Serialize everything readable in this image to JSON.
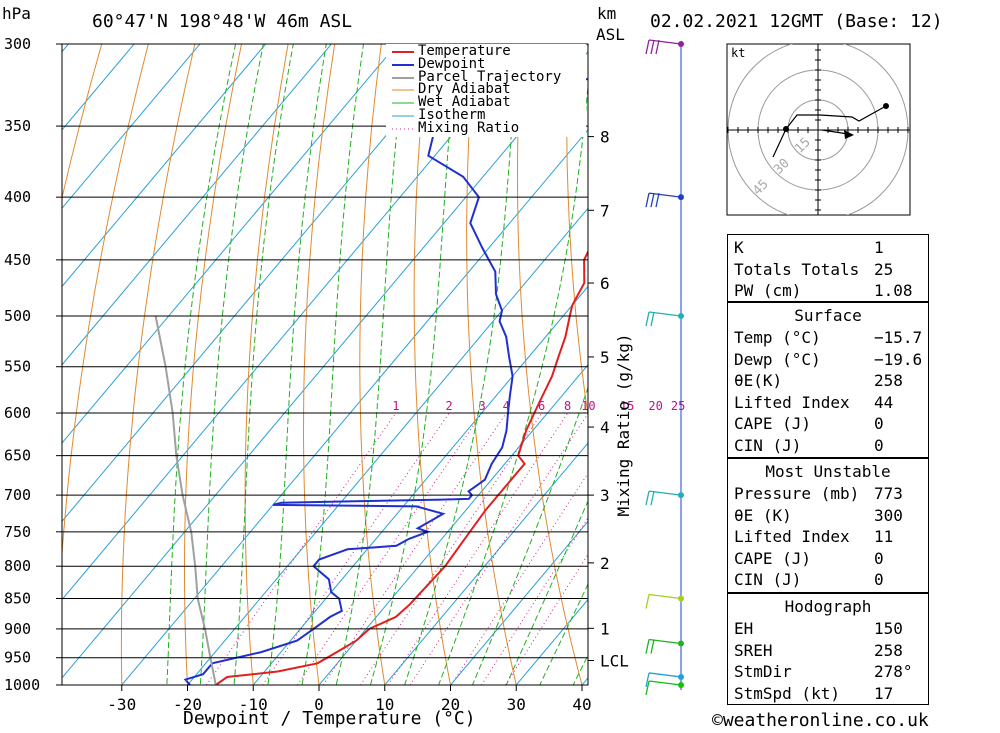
{
  "header": {
    "hpa_label": "hPa",
    "location": "60°47'N  198°48'W  46m  ASL",
    "km_label": "km",
    "asl_label": "ASL",
    "datetime": "02.02.2021  12GMT  (Base: 12)"
  },
  "chart_data": {
    "type": "line",
    "title": "Skew-T log-P diagram",
    "xlabel": "Dewpoint / Temperature (°C)",
    "ylabel": "hPa",
    "xlim": [
      -40,
      40
    ],
    "ylim": [
      1000,
      300
    ],
    "x_ticks": [
      -30,
      -20,
      -10,
      0,
      10,
      20,
      30,
      40
    ],
    "pressure_ticks": [
      300,
      350,
      400,
      450,
      500,
      550,
      600,
      650,
      700,
      750,
      800,
      850,
      900,
      950,
      1000
    ],
    "km_ticks": [
      {
        "label": "8",
        "p": 357
      },
      {
        "label": "7",
        "p": 410
      },
      {
        "label": "6",
        "p": 470
      },
      {
        "label": "5",
        "p": 540
      },
      {
        "label": "4",
        "p": 616
      },
      {
        "label": "3",
        "p": 700
      },
      {
        "label": "2",
        "p": 795
      },
      {
        "label": "1",
        "p": 899
      },
      {
        "label": "LCL",
        "p": 955
      }
    ],
    "mixing_ratio_label": "Mixing Ratio (g/kg)",
    "mixing_ratio_labels": [
      "1",
      "2",
      "3",
      "4",
      "6",
      "8",
      "10",
      "15",
      "20",
      "25"
    ],
    "legend": [
      "Temperature",
      "Dewpoint",
      "Parcel Trajectory",
      "Dry Adiabat",
      "Wet Adiabat",
      "Isotherm",
      "Mixing Ratio"
    ],
    "legend_position": "top-right",
    "series": [
      {
        "name": "Temperature",
        "color": "#e02020",
        "points": [
          [
            1000,
            -15.7
          ],
          [
            985,
            -15
          ],
          [
            975,
            -8
          ],
          [
            960,
            -3
          ],
          [
            940,
            -1.5
          ],
          [
            920,
            0
          ],
          [
            900,
            0.5
          ],
          [
            880,
            3
          ],
          [
            860,
            3.5
          ],
          [
            800,
            4
          ],
          [
            760,
            3.5
          ],
          [
            720,
            3
          ],
          [
            700,
            3
          ],
          [
            680,
            3
          ],
          [
            660,
            3
          ],
          [
            650,
            1
          ],
          [
            620,
            -1
          ],
          [
            600,
            -2
          ],
          [
            580,
            -3
          ],
          [
            560,
            -4
          ],
          [
            540,
            -5.5
          ],
          [
            520,
            -7
          ],
          [
            500,
            -9
          ],
          [
            490,
            -10
          ],
          [
            470,
            -11
          ],
          [
            450,
            -14
          ],
          [
            420,
            -16
          ],
          [
            400,
            -19
          ],
          [
            370,
            -23
          ],
          [
            350,
            -28
          ],
          [
            330,
            -33
          ],
          [
            310,
            -38
          ],
          [
            300,
            -41
          ]
        ]
      },
      {
        "name": "Dewpoint",
        "color": "#2030d0",
        "points": [
          [
            1000,
            -19.6
          ],
          [
            990,
            -21
          ],
          [
            980,
            -19
          ],
          [
            960,
            -19
          ],
          [
            940,
            -13
          ],
          [
            920,
            -9
          ],
          [
            900,
            -8
          ],
          [
            880,
            -7
          ],
          [
            870,
            -6
          ],
          [
            850,
            -8
          ],
          [
            840,
            -10
          ],
          [
            820,
            -12
          ],
          [
            810,
            -14
          ],
          [
            800,
            -16
          ],
          [
            790,
            -16
          ],
          [
            780,
            -14
          ],
          [
            775,
            -13
          ],
          [
            770,
            -6
          ],
          [
            760,
            -5
          ],
          [
            750,
            -3
          ],
          [
            745,
            -5
          ],
          [
            735,
            -4
          ],
          [
            725,
            -3
          ],
          [
            715,
            -8
          ],
          [
            713,
            -30
          ],
          [
            710,
            -29
          ],
          [
            708,
            -18
          ],
          [
            706,
            -5
          ],
          [
            705,
            -1
          ],
          [
            700,
            -1
          ],
          [
            695,
            -2
          ],
          [
            680,
            -1
          ],
          [
            660,
            -2
          ],
          [
            640,
            -2.5
          ],
          [
            620,
            -4
          ],
          [
            600,
            -6
          ],
          [
            580,
            -8
          ],
          [
            560,
            -10
          ],
          [
            540,
            -13
          ],
          [
            520,
            -16
          ],
          [
            505,
            -19
          ],
          [
            495,
            -20
          ],
          [
            480,
            -23
          ],
          [
            460,
            -26
          ],
          [
            440,
            -31
          ],
          [
            420,
            -36
          ],
          [
            400,
            -38
          ],
          [
            385,
            -43
          ],
          [
            370,
            -51
          ],
          [
            355,
            -53
          ],
          [
            345,
            -49
          ],
          [
            340,
            -42
          ],
          [
            330,
            -51
          ],
          [
            320,
            -36
          ],
          [
            310,
            -33
          ],
          [
            300,
            -38
          ]
        ]
      },
      {
        "name": "Parcel Trajectory",
        "color": "#a0a0a0",
        "points": [
          [
            1000,
            -15.7
          ],
          [
            950,
            -20
          ],
          [
            900,
            -24.5
          ],
          [
            850,
            -29.5
          ],
          [
            800,
            -34
          ],
          [
            750,
            -39
          ],
          [
            700,
            -45
          ],
          [
            650,
            -51
          ],
          [
            600,
            -57
          ],
          [
            550,
            -64
          ],
          [
            500,
            -72
          ]
        ]
      }
    ],
    "hodograph_rings": [
      "15",
      "30",
      "45"
    ],
    "hodograph_unit": "kt"
  },
  "stats": {
    "index": [
      {
        "key": "K",
        "value": "1"
      },
      {
        "key": "Totals Totals",
        "value": "25"
      },
      {
        "key": "PW (cm)",
        "value": "1.08"
      }
    ],
    "surface_title": "Surface",
    "surface": [
      {
        "key": "Temp (°C)",
        "value": "−15.7"
      },
      {
        "key": "Dewp (°C)",
        "value": "−19.6"
      },
      {
        "key": "θE(K)",
        "value": "258"
      },
      {
        "key": "Lifted Index",
        "value": "44"
      },
      {
        "key": "CAPE (J)",
        "value": "0"
      },
      {
        "key": "CIN (J)",
        "value": "0"
      }
    ],
    "unstable_title": "Most Unstable",
    "unstable": [
      {
        "key": "Pressure (mb)",
        "value": "773"
      },
      {
        "key": "θE (K)",
        "value": "300"
      },
      {
        "key": "Lifted Index",
        "value": "11"
      },
      {
        "key": "CAPE (J)",
        "value": "0"
      },
      {
        "key": "CIN (J)",
        "value": "0"
      }
    ],
    "hodo_title": "Hodograph",
    "hodo": [
      {
        "key": "EH",
        "value": "150"
      },
      {
        "key": "SREH",
        "value": "258"
      },
      {
        "key": "StmDir",
        "value": "278°"
      },
      {
        "key": "StmSpd (kt)",
        "value": "17"
      }
    ]
  },
  "footer": {
    "credit": "©weatheronline.co.uk"
  }
}
